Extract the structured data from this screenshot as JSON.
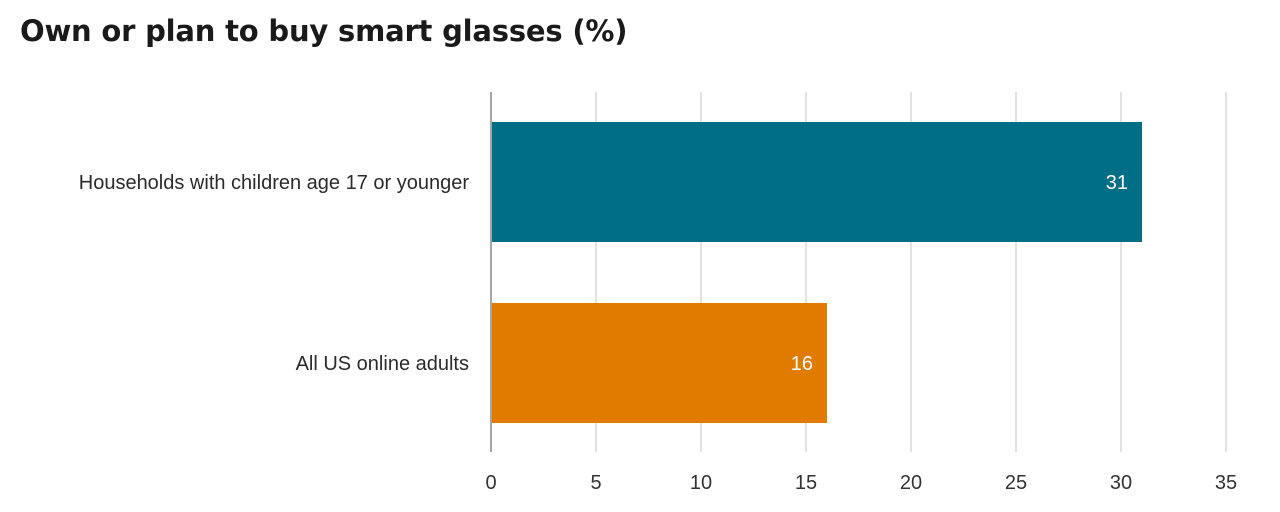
{
  "chart_data": {
    "type": "bar",
    "orientation": "horizontal",
    "title": "Own or plan to buy smart glasses (%)",
    "categories": [
      "Households with children age 17 or younger",
      "All US online adults"
    ],
    "values": [
      31,
      16
    ],
    "data_labels": [
      "31",
      "16"
    ],
    "colors": [
      "#006e87",
      "#e07b00"
    ],
    "xlim": [
      0,
      35
    ],
    "x_ticks": [
      0,
      5,
      10,
      15,
      20,
      25,
      30,
      35
    ],
    "x_tick_labels": [
      "0",
      "5",
      "10",
      "15",
      "20",
      "25",
      "30",
      "35"
    ],
    "grid": true,
    "gridline_color": "#d9d9d9",
    "axis_color": "#a6a6a6",
    "xlabel": "",
    "ylabel": "",
    "legend": "none"
  }
}
